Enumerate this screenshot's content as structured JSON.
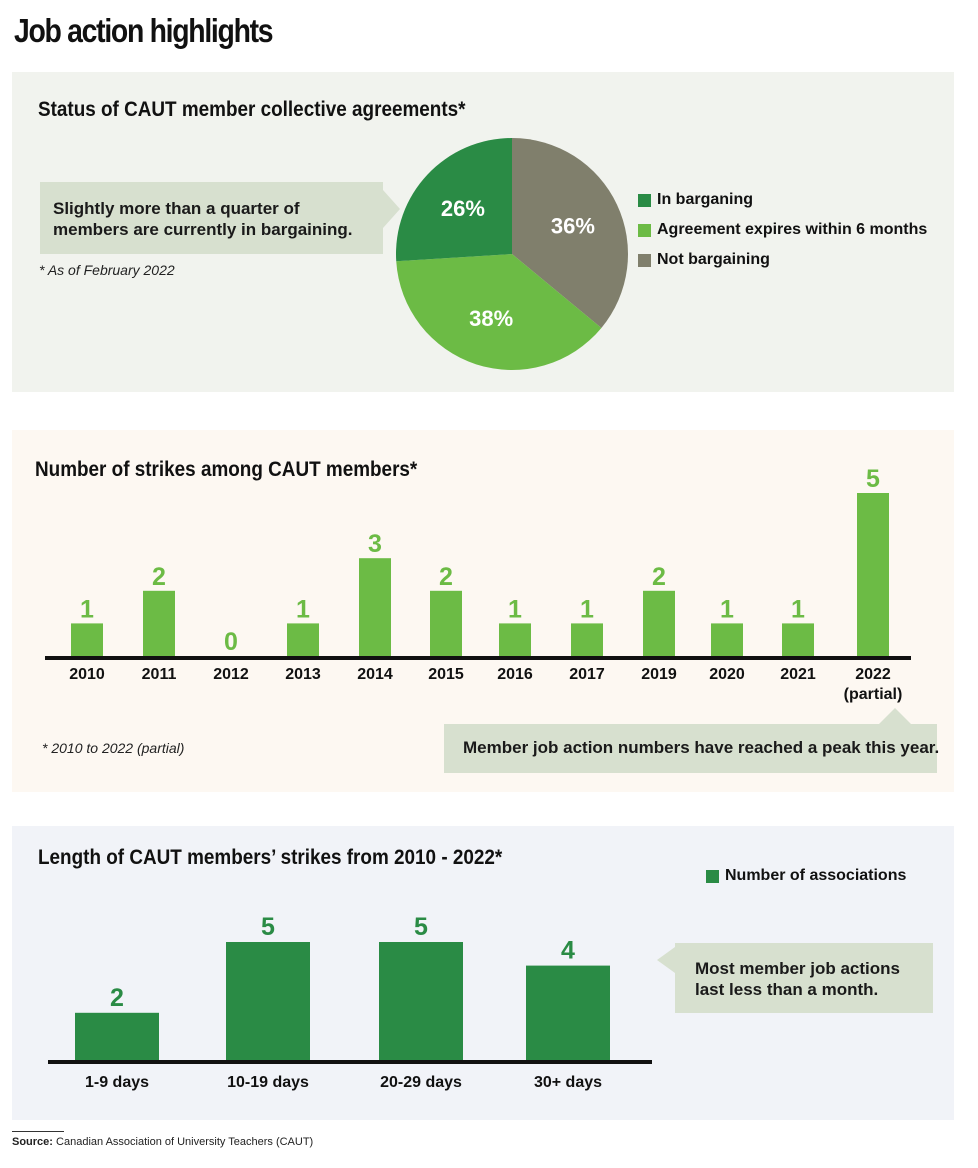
{
  "title": "Job action highlights",
  "colors": {
    "dark_green": "#2a8b45",
    "light_green": "#6cbb45",
    "gray": "#807f6c",
    "axis": "#111111"
  },
  "panel1": {
    "title": "Status of CAUT member collective agreements*",
    "callout": "Slightly more than a quarter of members are currently in bargaining.",
    "footnote": "* As of February 2022"
  },
  "panel2": {
    "title": "Number of strikes among CAUT members*",
    "callout": "Member job action numbers have reached a peak this year.",
    "footnote": "* 2010 to 2022 (partial)"
  },
  "panel3": {
    "title": "Length of CAUT members’ strikes from 2010 - 2022*",
    "callout": "Most member job actions last less than a month."
  },
  "source": {
    "label": "Source:",
    "text": "Canadian Association of University Teachers (CAUT)"
  },
  "chart_data": [
    {
      "type": "pie",
      "title": "Status of CAUT member collective agreements*",
      "slices": [
        {
          "label": "Not bargaining",
          "value": 36,
          "display": "36%",
          "color": "#807f6c"
        },
        {
          "label": "Agreement expires within 6 months",
          "value": 38,
          "display": "38%",
          "color": "#6cbb45"
        },
        {
          "label": "In barganing",
          "value": 26,
          "display": "26%",
          "color": "#2a8b45"
        }
      ],
      "legend": [
        "In barganing",
        "Agreement expires within 6 months",
        "Not bargaining"
      ],
      "legend_position": "right"
    },
    {
      "type": "bar",
      "title": "Number of strikes among CAUT members*",
      "categories": [
        "2010",
        "2011",
        "2012",
        "2013",
        "2014",
        "2015",
        "2016",
        "2017",
        "2019",
        "2020",
        "2021",
        "2022 (partial)"
      ],
      "values": [
        1,
        2,
        0,
        1,
        3,
        2,
        1,
        1,
        2,
        1,
        1,
        5
      ],
      "ylim": [
        0,
        5
      ],
      "color": "#6cbb45"
    },
    {
      "type": "bar",
      "title": "Length of CAUT members’ strikes from 2010 - 2022*",
      "categories": [
        "1-9 days",
        "10-19 days",
        "20-29 days",
        "30+ days"
      ],
      "series": [
        {
          "name": "Number of associations",
          "values": [
            2,
            5,
            5,
            4
          ]
        }
      ],
      "ylim": [
        0,
        5
      ],
      "color": "#2a8b45",
      "legend_position": "top-right"
    }
  ]
}
